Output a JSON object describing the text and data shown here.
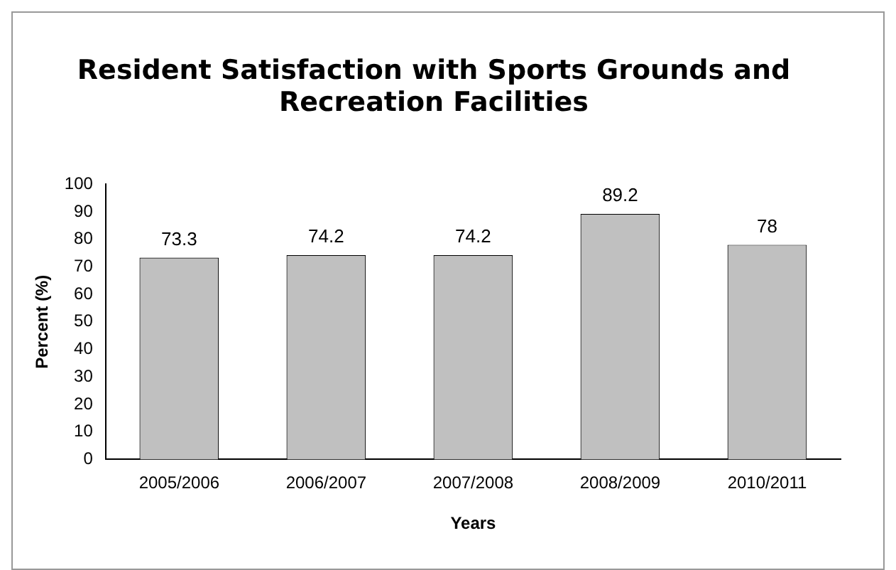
{
  "chart_data": {
    "type": "bar",
    "title": [
      "Resident Satisfaction with Sports Grounds and",
      "Recreation Facilities"
    ],
    "xlabel": "Years",
    "ylabel": "Percent (%)",
    "categories": [
      "2005/2006",
      "2006/2007",
      "2007/2008",
      "2008/2009",
      "2010/2011"
    ],
    "values": [
      73.3,
      74.2,
      74.2,
      89.2,
      78
    ],
    "color": "#c0c0c0",
    "ylim": [
      0,
      100
    ],
    "yticks": [
      0,
      10,
      20,
      30,
      40,
      50,
      60,
      70,
      80,
      90,
      100
    ],
    "grid": false,
    "legend": false,
    "data_labels": true
  }
}
